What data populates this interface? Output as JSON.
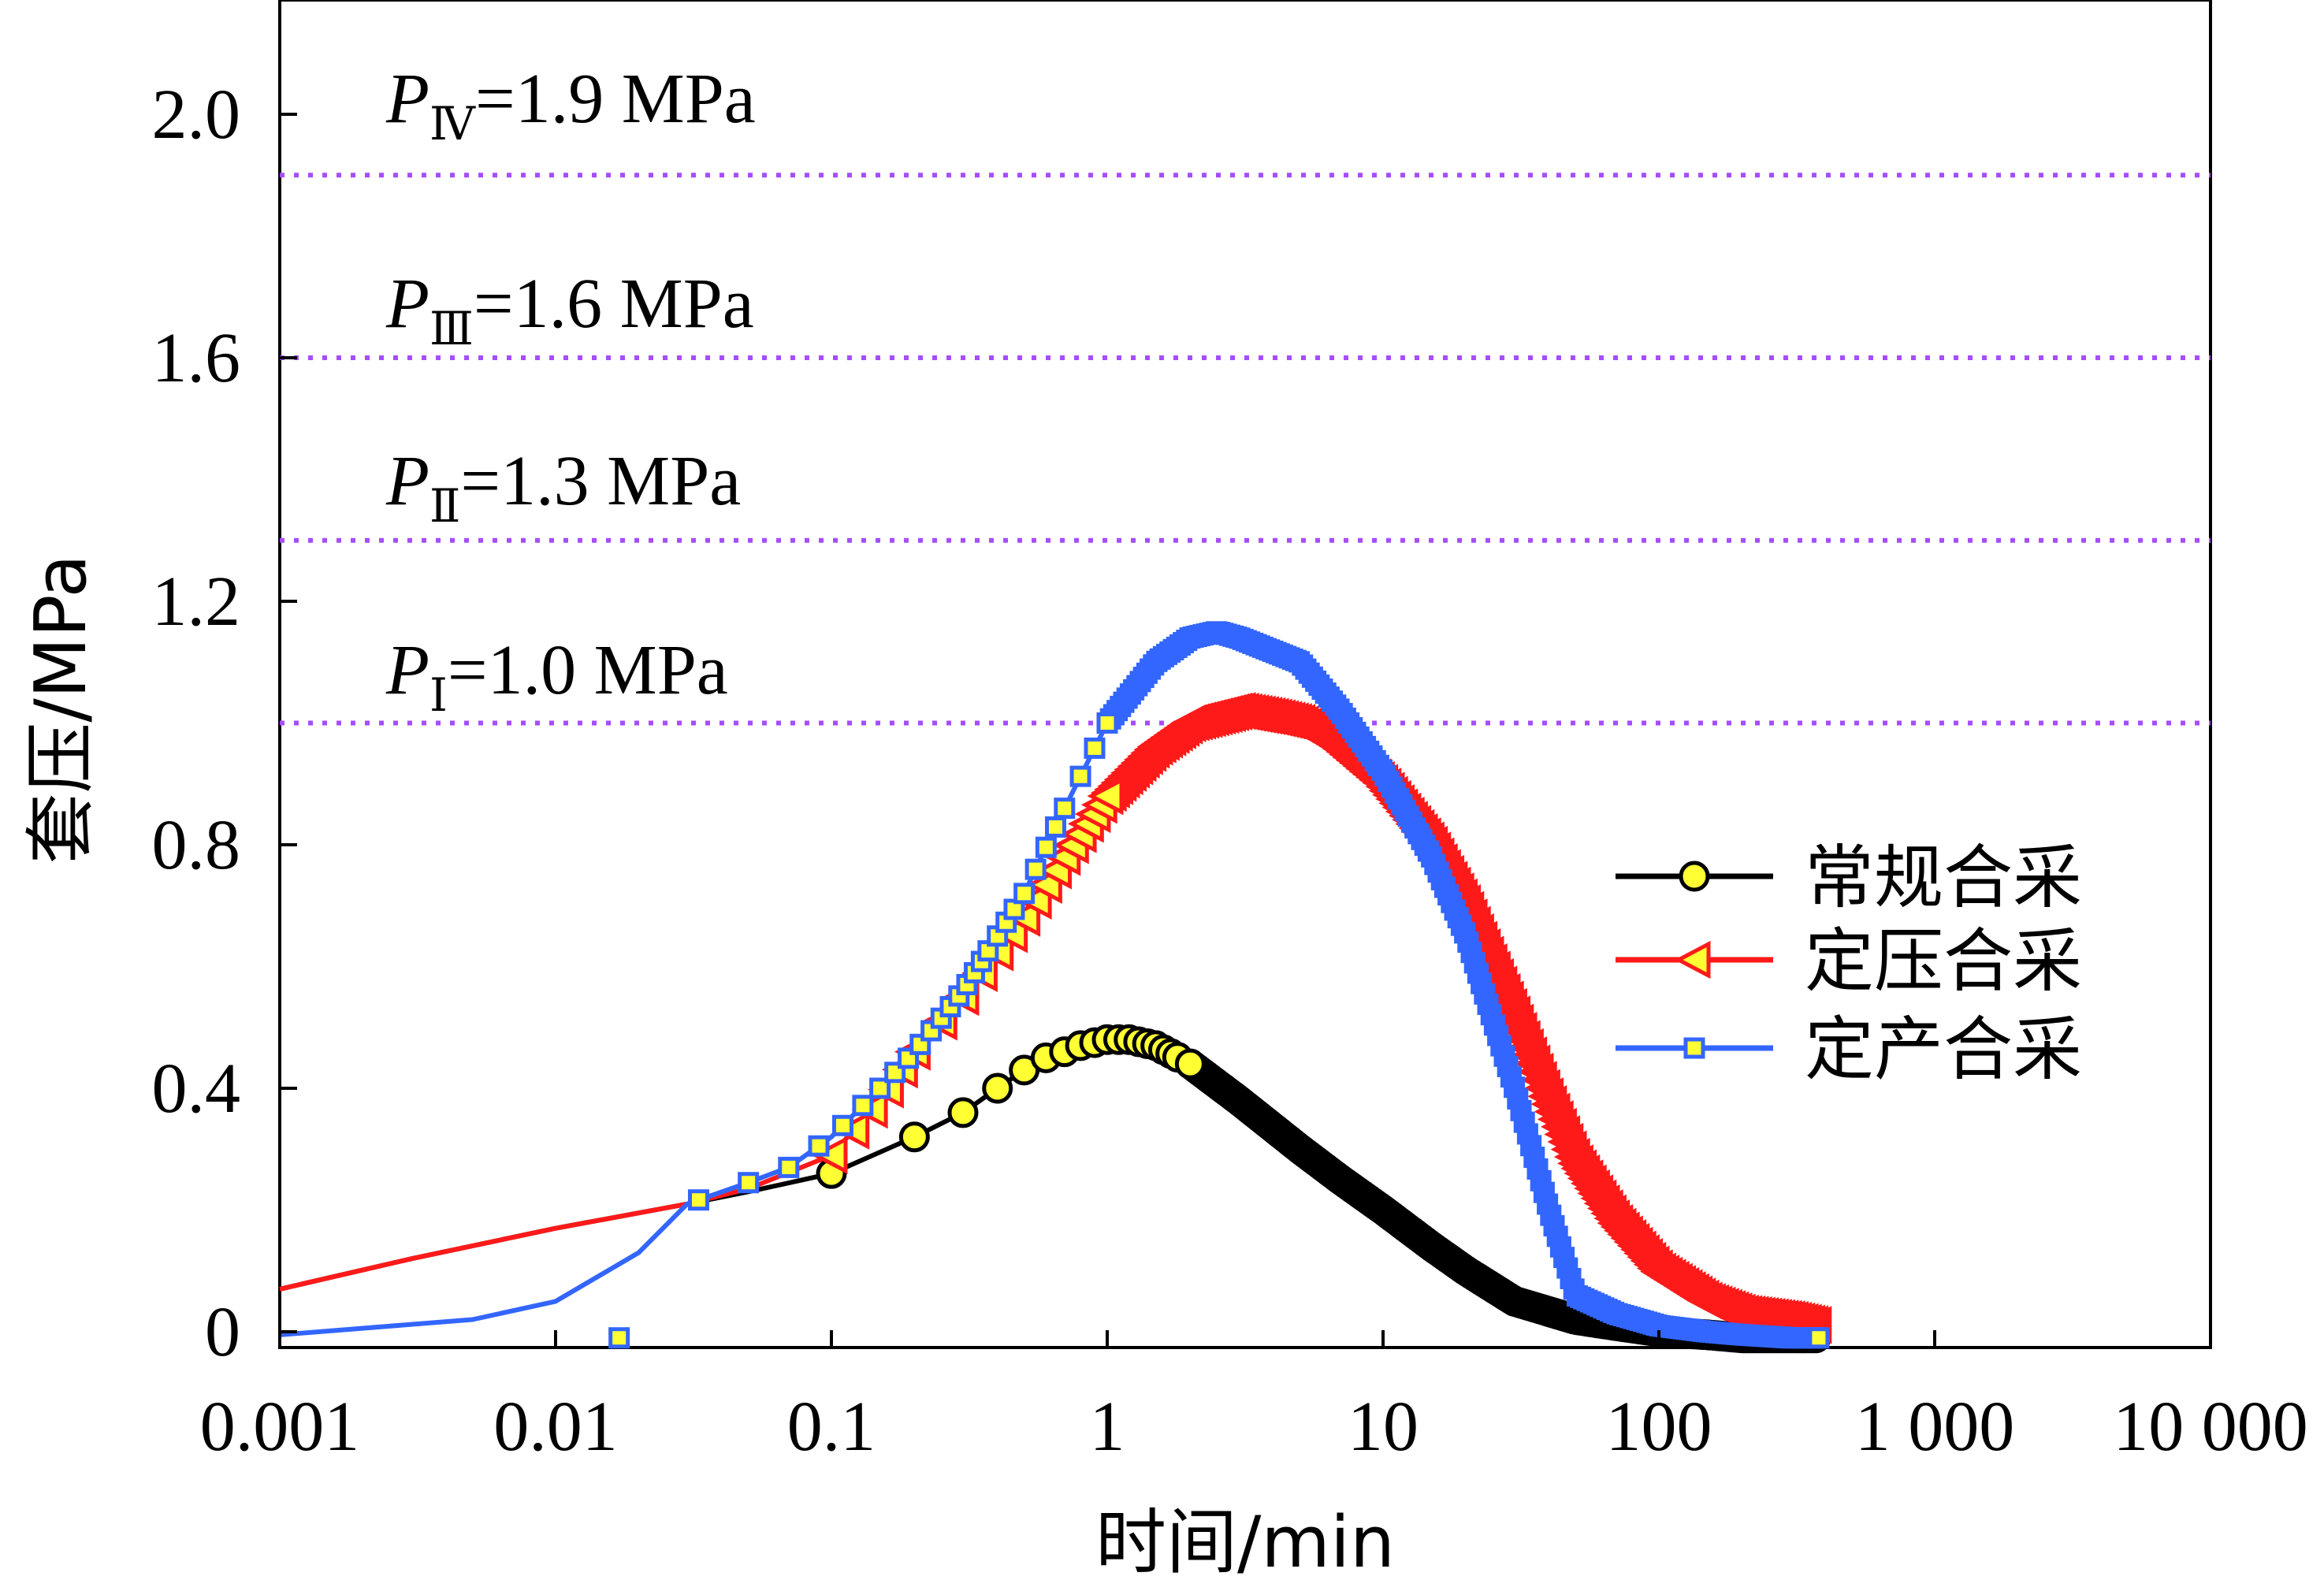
{
  "chart_data": {
    "type": "line",
    "xlabel": "时间/min",
    "ylabel": "套压/MPa",
    "x_scale": "log",
    "xlim": [
      0.001,
      10000
    ],
    "ylim": [
      -0.03,
      2.2
    ],
    "grid": false,
    "legend_position": "right",
    "x_ticks": [
      {
        "value": 0.001,
        "label": "0.001"
      },
      {
        "value": 0.01,
        "label": "0.01"
      },
      {
        "value": 0.1,
        "label": "0.1"
      },
      {
        "value": 1,
        "label": "1"
      },
      {
        "value": 10,
        "label": "10"
      },
      {
        "value": 100,
        "label": "100"
      },
      {
        "value": 1000,
        "label": "1 000"
      },
      {
        "value": 10000,
        "label": "10 000"
      }
    ],
    "y_ticks": [
      {
        "value": 0,
        "label": "0"
      },
      {
        "value": 0.4,
        "label": "0.4"
      },
      {
        "value": 0.8,
        "label": "0.8"
      },
      {
        "value": 1.2,
        "label": "1.2"
      },
      {
        "value": 1.6,
        "label": "1.6"
      },
      {
        "value": 2.0,
        "label": "2.0"
      }
    ],
    "reference_lines": [
      {
        "y": 1.9,
        "label_base": "P",
        "label_sub": "Ⅳ",
        "label_value": "=1.9 MPa",
        "color": "#a64dff"
      },
      {
        "y": 1.6,
        "label_base": "P",
        "label_sub": "Ⅲ",
        "label_value": "=1.6 MPa",
        "color": "#a64dff"
      },
      {
        "y": 1.3,
        "label_base": "P",
        "label_sub": "Ⅱ",
        "label_value": "=1.3 MPa",
        "color": "#a64dff"
      },
      {
        "y": 1.0,
        "label_base": "P",
        "label_sub": "Ⅰ",
        "label_value": "=1.0 MPa",
        "color": "#a64dff"
      }
    ],
    "series": [
      {
        "name": "常规合采",
        "color": "#000000",
        "marker": "circle",
        "marker_fill": "#ffff33",
        "x": [
          0.001,
          0.003,
          0.01,
          0.03,
          0.05,
          0.1,
          0.2,
          0.3,
          0.4,
          0.5,
          0.6,
          0.7,
          0.8,
          0.9,
          1.0,
          1.2,
          1.5,
          2,
          3,
          5,
          7,
          10,
          15,
          20,
          30,
          50,
          70,
          100,
          150,
          200,
          300,
          380
        ],
        "y": [
          0.07,
          0.12,
          0.17,
          0.21,
          0.23,
          0.26,
          0.32,
          0.36,
          0.4,
          0.43,
          0.45,
          0.46,
          0.47,
          0.475,
          0.48,
          0.48,
          0.47,
          0.44,
          0.38,
          0.3,
          0.25,
          0.2,
          0.14,
          0.1,
          0.05,
          0.02,
          0.01,
          0.0,
          -0.005,
          -0.01,
          -0.01,
          -0.01
        ],
        "marker_x": [
          0.1,
          0.2,
          0.3,
          0.4,
          0.5,
          0.6,
          0.7,
          0.8,
          0.9,
          1.0,
          1.1,
          1.2,
          1.3,
          1.4,
          1.5,
          1.6,
          1.7,
          1.8,
          2.0
        ]
      },
      {
        "name": "定压合采",
        "color": "#ff1a1a",
        "marker": "triangle-left",
        "marker_fill": "#ffff33",
        "x": [
          0.001,
          0.003,
          0.01,
          0.03,
          0.05,
          0.1,
          0.15,
          0.2,
          0.3,
          0.5,
          0.7,
          1.0,
          1.5,
          2,
          3,
          4,
          5,
          7,
          10,
          15,
          20,
          30,
          40,
          50,
          70,
          100,
          150,
          200,
          300,
          380
        ],
        "y": [
          0.07,
          0.12,
          0.17,
          0.21,
          0.235,
          0.29,
          0.38,
          0.46,
          0.55,
          0.68,
          0.78,
          0.88,
          0.96,
          1.0,
          1.02,
          1.01,
          1.0,
          0.96,
          0.9,
          0.8,
          0.7,
          0.52,
          0.38,
          0.28,
          0.18,
          0.1,
          0.05,
          0.03,
          0.02,
          0.01
        ],
        "marker_x": [
          0.1,
          0.12,
          0.14,
          0.16,
          0.18,
          0.2,
          0.25,
          0.3,
          0.35,
          0.4,
          0.45,
          0.5,
          0.55,
          0.6,
          0.65,
          0.7,
          0.75,
          0.8,
          0.85,
          0.9,
          0.95,
          1.0
        ]
      },
      {
        "name": "定产合采",
        "color": "#3366ff",
        "marker": "square",
        "marker_fill": "#ffff33",
        "x": [
          0.001,
          0.005,
          0.01,
          0.02,
          0.03,
          0.05,
          0.07,
          0.1,
          0.15,
          0.2,
          0.3,
          0.5,
          0.7,
          1.0,
          1.5,
          2,
          2.5,
          3,
          5,
          7,
          10,
          15,
          20,
          30,
          40,
          50,
          70,
          100,
          150,
          200,
          300,
          380
        ],
        "y": [
          -0.005,
          0.02,
          0.05,
          0.13,
          0.21,
          0.245,
          0.27,
          0.32,
          0.4,
          0.46,
          0.56,
          0.72,
          0.86,
          1.0,
          1.1,
          1.14,
          1.15,
          1.14,
          1.1,
          1.02,
          0.92,
          0.78,
          0.65,
          0.4,
          0.2,
          0.06,
          0.03,
          0.01,
          0.0,
          -0.005,
          -0.01,
          -0.01
        ],
        "marker_x": [
          0.017,
          0.033,
          0.05,
          0.07,
          0.09,
          0.11,
          0.13,
          0.15,
          0.17,
          0.19,
          0.21,
          0.23,
          0.25,
          0.27,
          0.29,
          0.31,
          0.33,
          0.35,
          0.37,
          0.4,
          0.43,
          0.46,
          0.5,
          0.55,
          0.6,
          0.65,
          0.7,
          0.8,
          0.9,
          1.0,
          380
        ],
        "marker_y_override": {
          "0.017": -0.01,
          "380": -0.01
        }
      }
    ]
  }
}
